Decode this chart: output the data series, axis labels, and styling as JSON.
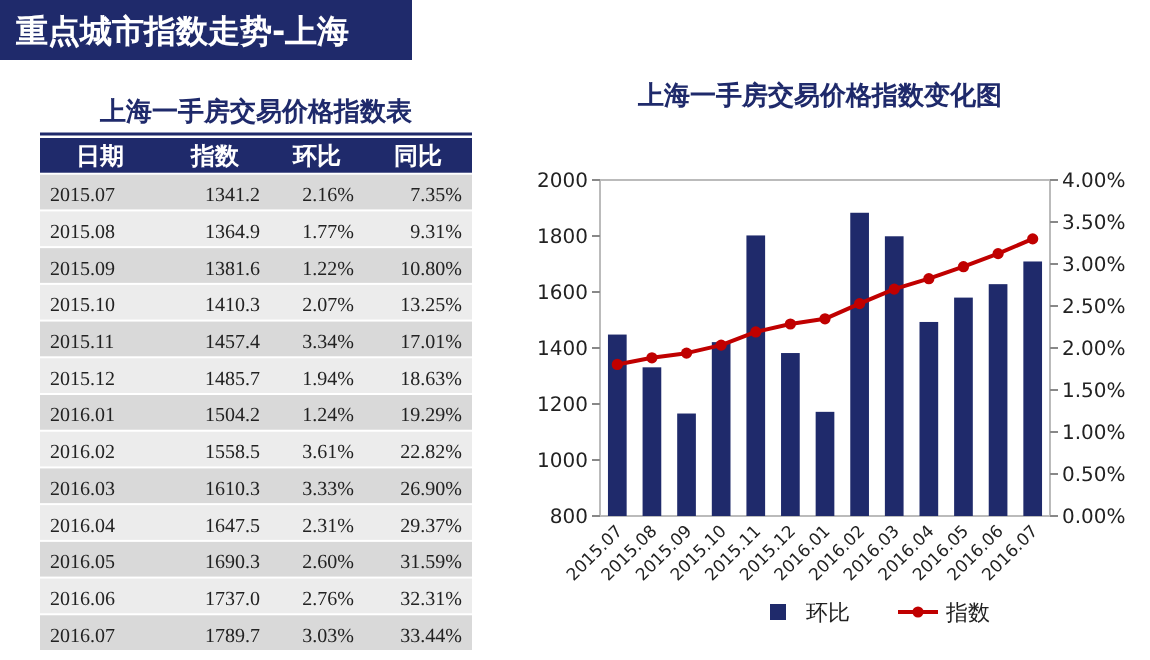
{
  "chart_data": [
    {
      "type": "other",
      "title": "重点城市指数走势-上海",
      "subtitle": "上海一手房交易价格指数表",
      "annotations": [
        "日期",
        "指数",
        "环比",
        "同比",
        "2015.07",
        "1341.2",
        "2.16%",
        "7.35%",
        "2015.08",
        "1364.9",
        "1.77%",
        "9.31%",
        "2015.09",
        "1381.6",
        "1.22%",
        "10.80%",
        "2015.10",
        "1410.3",
        "2.07%",
        "13.25%",
        "2015.11",
        "1457.4",
        "3.34%",
        "17.01%",
        "2015.12",
        "1485.7",
        "1.94%",
        "18.63%",
        "2016.01",
        "1504.2",
        "1.24%",
        "19.29%",
        "2016.02",
        "1558.5",
        "3.61%",
        "22.82%",
        "2016.03",
        "1610.3",
        "3.33%",
        "26.90%",
        "2016.04",
        "1647.5",
        "2.31%",
        "29.37%",
        "2016.05",
        "1690.3",
        "2.60%",
        "31.59%",
        "2016.06",
        "1737.0",
        "2.76%",
        "32.31%",
        "2016.07",
        "1789.7",
        "3.03%",
        "33.44%"
      ]
    },
    {
      "type": "bar",
      "title": "上海一手房交易价格指数变化图",
      "categories": [
        "2015.07",
        "2015.08",
        "2015.09",
        "2015.10",
        "2015.11",
        "2015.12",
        "2016.01",
        "2016.02",
        "2016.03",
        "2016.04",
        "2016.05",
        "2016.06",
        "2016.07"
      ],
      "series": [
        {
          "name": "环比",
          "type": "bar",
          "axis": "y2",
          "color": "#1f2a6b",
          "values": [
            2.16,
            1.77,
            1.22,
            2.07,
            3.34,
            1.94,
            1.24,
            3.61,
            3.33,
            2.31,
            2.6,
            2.76,
            3.03
          ]
        },
        {
          "name": "指数",
          "type": "line",
          "color": "#c00000",
          "marker": "circle",
          "values": [
            1341.2,
            1364.9,
            1381.6,
            1410.3,
            1457.4,
            1485.7,
            1504.2,
            1558.5,
            1610.3,
            1647.5,
            1690.3,
            1737.0,
            1789.7
          ]
        }
      ],
      "ylim": [
        800,
        2000
      ],
      "yticks": [
        800,
        1000,
        1200,
        1400,
        1600,
        1800,
        2000
      ],
      "y2lim": [
        0,
        4
      ],
      "y2ticks": [
        {
          "value": 0,
          "label": "0.00%"
        },
        {
          "value": 0.5,
          "label": "0.50%"
        },
        {
          "value": 1,
          "label": "1.00%"
        },
        {
          "value": 1.5,
          "label": "1.50%"
        },
        {
          "value": 2,
          "label": "2.00%"
        },
        {
          "value": 2.5,
          "label": "2.50%"
        },
        {
          "value": 3,
          "label": "3.00%"
        },
        {
          "value": 3.5,
          "label": "3.50%"
        },
        {
          "value": 4,
          "label": "4.00%"
        }
      ],
      "legend": "bottom"
    }
  ]
}
